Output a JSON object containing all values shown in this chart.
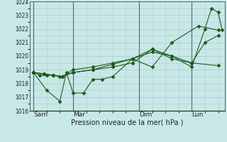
{
  "background_color": "#c8e8e8",
  "grid_color": "#b0d0d0",
  "line_color": "#1a5c1a",
  "marker_color": "#1a5c1a",
  "xlabel": "Pression niveau de la mer( hPa )",
  "ylim": [
    1016,
    1024
  ],
  "yticks": [
    1016,
    1017,
    1018,
    1019,
    1020,
    1021,
    1022,
    1023,
    1024
  ],
  "xtick_labels": [
    "Sam",
    "Mar",
    "Dim",
    "Lun"
  ],
  "xtick_positions": [
    0,
    3,
    8,
    12
  ],
  "vline_positions": [
    0,
    3,
    8,
    12
  ],
  "xlim": [
    -0.3,
    14.5
  ],
  "series": [
    [
      1018.8,
      1018.6,
      1018.6,
      1018.6,
      1018.5,
      1018.8,
      1019.0,
      1019.4,
      1019.8,
      1019.2,
      1021.0,
      1022.2,
      1021.9
    ],
    [
      1018.8,
      1017.5,
      1016.7,
      1018.8,
      1017.3,
      1017.3,
      1018.3,
      1018.3,
      1018.5,
      1019.8,
      1020.5,
      1019.8,
      1019.5,
      1019.3
    ],
    [
      1018.8,
      1018.7,
      1018.6,
      1018.5,
      1019.0,
      1019.2,
      1019.5,
      1019.8,
      1020.3,
      1020.0,
      1019.5,
      1021.0,
      1021.5
    ],
    [
      1018.8,
      1018.7,
      1018.6,
      1018.5,
      1018.8,
      1019.0,
      1019.2,
      1019.5,
      1020.5,
      1020.0,
      1019.2,
      1022.0,
      1023.5,
      1023.2,
      1021.9
    ]
  ],
  "series_x": [
    [
      0,
      0.5,
      1,
      1.5,
      2,
      3,
      4.5,
      6,
      7.5,
      9,
      10.5,
      12.5,
      14
    ],
    [
      0,
      1.0,
      2.0,
      2.5,
      3,
      3.8,
      4.5,
      5.2,
      6,
      7.5,
      9,
      10.5,
      12,
      14
    ],
    [
      0,
      0.8,
      1.5,
      2.2,
      3,
      4.5,
      6,
      7.5,
      9,
      10.5,
      12,
      13,
      14
    ],
    [
      0,
      0.8,
      1.5,
      2.2,
      3,
      4.5,
      6,
      7.5,
      9,
      10.5,
      12,
      13,
      13.5,
      14,
      14.3
    ]
  ]
}
